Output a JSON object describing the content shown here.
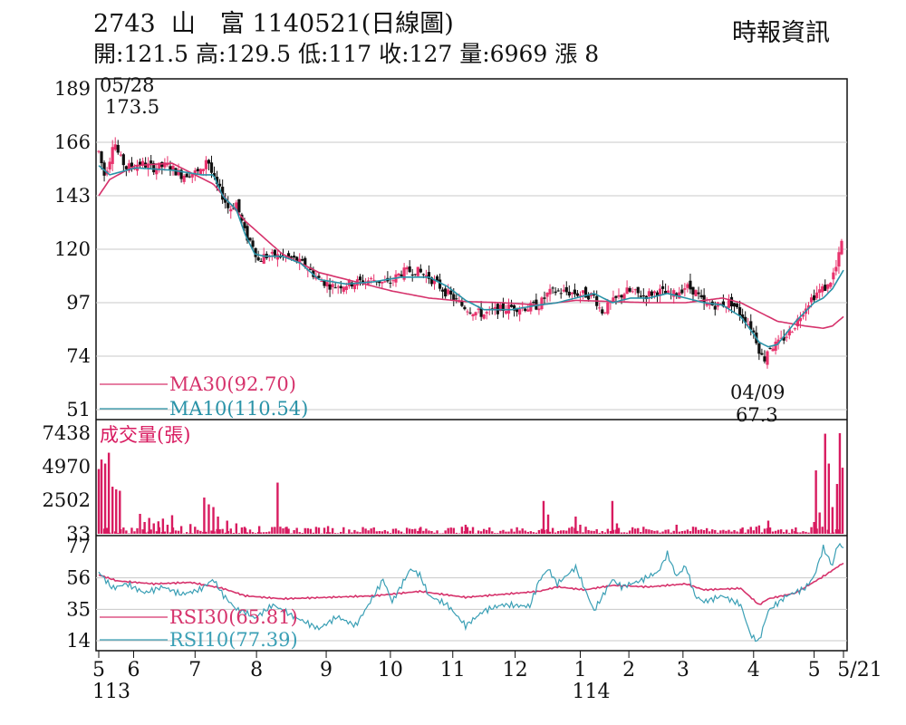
{
  "header": {
    "code": "2743",
    "name": "山　富",
    "date_label": "1140521(日線圖)",
    "source": "時報資訊",
    "quote": {
      "open_label": "開",
      "open": "121.5",
      "high_label": "高",
      "high": "129.5",
      "low_label": "低",
      "low": "117",
      "close_label": "收",
      "close": "127",
      "volume_label": "量",
      "volume": "6969",
      "change_label": "漲",
      "change": "8"
    }
  },
  "colors": {
    "up": "#e8336d",
    "down": "#111111",
    "ma30": "#d6336c",
    "ma10": "#2a93a8",
    "volume": "#d81b60",
    "rsi30": "#d6336c",
    "rsi10": "#3a9fb5",
    "grid": "#c8c8c8"
  },
  "chart_data": [
    {
      "type": "candlestick",
      "y_ticks": [
        "189",
        "166",
        "143",
        "120",
        "97",
        "74",
        "51"
      ],
      "ylim": [
        51,
        189
      ],
      "x_months": [
        "5",
        "6",
        "7",
        "8",
        "9",
        "10",
        "11",
        "12",
        "1",
        "2",
        "3",
        "4",
        "5",
        "5/21"
      ],
      "x_years": [
        "113",
        "114"
      ],
      "annotations": [
        {
          "date": "05/28",
          "value": "173.5"
        },
        {
          "date": "04/09",
          "value": "67.3"
        }
      ],
      "legend": [
        {
          "name": "MA30",
          "value": "(92.70)"
        },
        {
          "name": "MA10",
          "value": "(110.54)"
        }
      ],
      "ma30_anchors": [
        [
          0,
          143
        ],
        [
          12,
          150
        ],
        [
          40,
          156
        ],
        [
          80,
          157
        ],
        [
          125,
          148
        ],
        [
          160,
          132
        ],
        [
          200,
          118
        ],
        [
          240,
          110
        ],
        [
          280,
          106
        ],
        [
          320,
          102
        ],
        [
          360,
          99
        ],
        [
          400,
          97.5
        ],
        [
          440,
          97
        ],
        [
          480,
          96
        ],
        [
          500,
          97
        ],
        [
          520,
          98
        ],
        [
          560,
          97.5
        ],
        [
          600,
          97
        ],
        [
          640,
          97
        ],
        [
          660,
          98
        ],
        [
          680,
          99
        ],
        [
          700,
          97
        ],
        [
          740,
          89
        ],
        [
          770,
          87
        ],
        [
          790,
          86
        ],
        [
          800,
          87
        ],
        [
          812,
          91
        ]
      ],
      "ma10_anchors": [
        [
          0,
          156
        ],
        [
          12,
          152
        ],
        [
          40,
          155
        ],
        [
          80,
          154
        ],
        [
          112,
          152
        ],
        [
          125,
          152
        ],
        [
          135,
          143
        ],
        [
          150,
          137
        ],
        [
          160,
          126
        ],
        [
          170,
          118
        ],
        [
          180,
          117
        ],
        [
          200,
          117
        ],
        [
          220,
          114
        ],
        [
          240,
          107
        ],
        [
          270,
          105
        ],
        [
          300,
          106
        ],
        [
          330,
          108
        ],
        [
          360,
          108
        ],
        [
          380,
          104
        ],
        [
          400,
          98
        ],
        [
          420,
          94
        ],
        [
          450,
          94
        ],
        [
          480,
          96
        ],
        [
          500,
          97
        ],
        [
          520,
          99
        ],
        [
          540,
          101
        ],
        [
          560,
          97
        ],
        [
          580,
          99
        ],
        [
          600,
          99
        ],
        [
          620,
          101
        ],
        [
          640,
          99
        ],
        [
          660,
          97
        ],
        [
          680,
          96
        ],
        [
          700,
          91
        ],
        [
          715,
          83
        ],
        [
          720,
          80
        ],
        [
          730,
          78
        ],
        [
          740,
          79
        ],
        [
          750,
          84
        ],
        [
          760,
          89
        ],
        [
          770,
          93
        ],
        [
          780,
          97
        ],
        [
          790,
          99
        ],
        [
          800,
          103
        ],
        [
          812,
          111
        ]
      ],
      "price_anchors": [
        [
          0,
          162
        ],
        [
          6,
          152
        ],
        [
          12,
          159
        ],
        [
          16,
          168
        ],
        [
          22,
          160
        ],
        [
          30,
          155
        ],
        [
          45,
          157
        ],
        [
          60,
          155
        ],
        [
          75,
          156
        ],
        [
          90,
          152
        ],
        [
          105,
          153
        ],
        [
          112,
          153
        ],
        [
          118,
          160
        ],
        [
          125,
          150
        ],
        [
          135,
          143
        ],
        [
          142,
          137
        ],
        [
          150,
          140
        ],
        [
          160,
          126
        ],
        [
          168,
          122
        ],
        [
          174,
          115
        ],
        [
          180,
          117
        ],
        [
          200,
          117
        ],
        [
          210,
          116
        ],
        [
          225,
          113
        ],
        [
          240,
          107
        ],
        [
          255,
          104
        ],
        [
          270,
          105
        ],
        [
          285,
          106
        ],
        [
          300,
          107
        ],
        [
          315,
          105
        ],
        [
          330,
          110
        ],
        [
          345,
          111
        ],
        [
          360,
          108
        ],
        [
          380,
          101
        ],
        [
          395,
          96
        ],
        [
          410,
          93
        ],
        [
          420,
          92
        ],
        [
          435,
          94
        ],
        [
          450,
          95
        ],
        [
          470,
          95
        ],
        [
          480,
          96
        ],
        [
          490,
          101
        ],
        [
          500,
          102
        ],
        [
          520,
          101
        ],
        [
          540,
          100
        ],
        [
          548,
          93
        ],
        [
          560,
          97
        ],
        [
          575,
          102
        ],
        [
          595,
          100
        ],
        [
          610,
          102
        ],
        [
          625,
          100
        ],
        [
          640,
          104
        ],
        [
          650,
          102
        ],
        [
          660,
          96
        ],
        [
          675,
          96
        ],
        [
          690,
          97
        ],
        [
          700,
          92
        ],
        [
          705,
          90
        ],
        [
          712,
          86
        ],
        [
          718,
          80
        ],
        [
          722,
          74
        ],
        [
          726,
          73
        ],
        [
          730,
          78
        ],
        [
          740,
          79
        ],
        [
          750,
          83
        ],
        [
          760,
          88
        ],
        [
          768,
          94
        ],
        [
          775,
          98
        ],
        [
          785,
          102
        ],
        [
          795,
          104
        ],
        [
          805,
          113
        ],
        [
          812,
          127
        ]
      ]
    },
    {
      "type": "bar",
      "title": "成交量(張)",
      "y_ticks": [
        "7438",
        "4970",
        "2502",
        "33"
      ],
      "ylim": [
        33,
        7438
      ],
      "spikes": [
        [
          0,
          4800
        ],
        [
          3,
          5500
        ],
        [
          7,
          5200
        ],
        [
          11,
          6000
        ],
        [
          15,
          3500
        ],
        [
          19,
          3300
        ],
        [
          23,
          3200
        ],
        [
          45,
          1500
        ],
        [
          50,
          900
        ],
        [
          55,
          1200
        ],
        [
          60,
          800
        ],
        [
          65,
          950
        ],
        [
          70,
          1150
        ],
        [
          75,
          700
        ],
        [
          80,
          1400
        ],
        [
          90,
          600
        ],
        [
          100,
          750
        ],
        [
          115,
          2700
        ],
        [
          120,
          2200
        ],
        [
          125,
          2000
        ],
        [
          130,
          1300
        ],
        [
          140,
          1000
        ],
        [
          150,
          800
        ],
        [
          160,
          450
        ],
        [
          175,
          600
        ],
        [
          195,
          3800
        ],
        [
          205,
          550
        ],
        [
          225,
          450
        ],
        [
          250,
          600
        ],
        [
          300,
          500
        ],
        [
          350,
          450
        ],
        [
          400,
          700
        ],
        [
          450,
          400
        ],
        [
          485,
          2450
        ],
        [
          490,
          1450
        ],
        [
          520,
          1300
        ],
        [
          525,
          700
        ],
        [
          560,
          2450
        ],
        [
          565,
          800
        ],
        [
          600,
          350
        ],
        [
          630,
          700
        ],
        [
          660,
          300
        ],
        [
          700,
          400
        ],
        [
          720,
          650
        ],
        [
          730,
          1000
        ],
        [
          760,
          500
        ],
        [
          780,
          900
        ],
        [
          782,
          4700
        ],
        [
          786,
          1600
        ],
        [
          792,
          7400
        ],
        [
          796,
          5200
        ],
        [
          800,
          2000
        ],
        [
          805,
          3700
        ],
        [
          808,
          7450
        ],
        [
          811,
          4900
        ],
        [
          813,
          2800
        ],
        [
          815,
          7200
        ]
      ]
    },
    {
      "type": "line",
      "y_ticks": [
        "77",
        "56",
        "35",
        "14"
      ],
      "ylim": [
        14,
        77
      ],
      "legend": [
        {
          "name": "RSI30",
          "value": "(65.81)"
        },
        {
          "name": "RSI10",
          "value": "(77.39)"
        }
      ],
      "rsi30_anchors": [
        [
          0,
          58
        ],
        [
          20,
          54
        ],
        [
          60,
          52
        ],
        [
          100,
          53
        ],
        [
          135,
          49
        ],
        [
          160,
          44
        ],
        [
          200,
          42
        ],
        [
          250,
          43
        ],
        [
          300,
          44
        ],
        [
          350,
          47
        ],
        [
          400,
          43
        ],
        [
          440,
          45
        ],
        [
          480,
          47
        ],
        [
          500,
          50
        ],
        [
          530,
          48
        ],
        [
          560,
          51
        ],
        [
          600,
          50
        ],
        [
          640,
          52
        ],
        [
          660,
          48
        ],
        [
          700,
          49
        ],
        [
          720,
          38
        ],
        [
          730,
          42
        ],
        [
          760,
          46
        ],
        [
          790,
          57
        ],
        [
          812,
          66
        ]
      ],
      "rsi10_anchors": [
        [
          0,
          60
        ],
        [
          15,
          49
        ],
        [
          30,
          52
        ],
        [
          50,
          46
        ],
        [
          70,
          50
        ],
        [
          90,
          45
        ],
        [
          110,
          48
        ],
        [
          125,
          55
        ],
        [
          135,
          45
        ],
        [
          150,
          35
        ],
        [
          160,
          33
        ],
        [
          170,
          29
        ],
        [
          190,
          38
        ],
        [
          210,
          31
        ],
        [
          240,
          22
        ],
        [
          260,
          30
        ],
        [
          280,
          24
        ],
        [
          300,
          44
        ],
        [
          310,
          55
        ],
        [
          320,
          40
        ],
        [
          340,
          62
        ],
        [
          350,
          58
        ],
        [
          360,
          44
        ],
        [
          380,
          38
        ],
        [
          400,
          24
        ],
        [
          420,
          34
        ],
        [
          440,
          38
        ],
        [
          470,
          37
        ],
        [
          480,
          54
        ],
        [
          490,
          62
        ],
        [
          500,
          52
        ],
        [
          520,
          63
        ],
        [
          540,
          34
        ],
        [
          560,
          55
        ],
        [
          570,
          50
        ],
        [
          590,
          54
        ],
        [
          610,
          60
        ],
        [
          620,
          72
        ],
        [
          630,
          57
        ],
        [
          640,
          64
        ],
        [
          650,
          44
        ],
        [
          660,
          40
        ],
        [
          680,
          44
        ],
        [
          700,
          38
        ],
        [
          710,
          19
        ],
        [
          715,
          15
        ],
        [
          720,
          14
        ],
        [
          730,
          34
        ],
        [
          750,
          44
        ],
        [
          770,
          49
        ],
        [
          780,
          57
        ],
        [
          790,
          76
        ],
        [
          800,
          64
        ],
        [
          805,
          78
        ],
        [
          812,
          77
        ]
      ]
    }
  ]
}
